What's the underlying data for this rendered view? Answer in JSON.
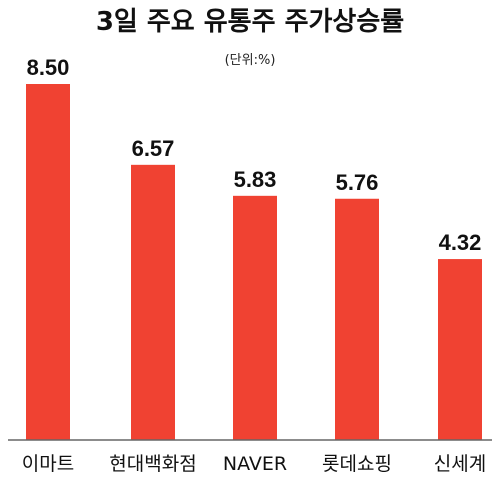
{
  "chart_data": {
    "type": "bar",
    "title": "3일 주요 유통주 주가상승률",
    "subtitle": "(단위:%)",
    "categories": [
      "이마트",
      "현대백화점",
      "NAVER",
      "롯데쇼핑",
      "신세계"
    ],
    "values": [
      8.5,
      6.57,
      5.83,
      5.76,
      4.32
    ],
    "value_labels": [
      "8.50",
      "6.57",
      "5.83",
      "5.76",
      "4.32"
    ],
    "ylim": [
      0,
      8.5
    ],
    "grid": false,
    "legend": "none",
    "bar_color": "#f04232",
    "axis_color": "#666666"
  }
}
